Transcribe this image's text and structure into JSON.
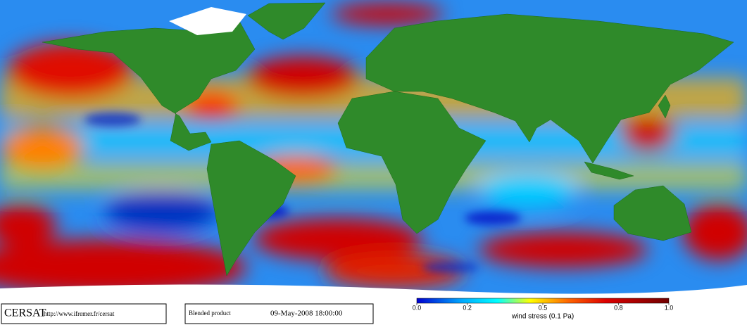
{
  "header": {
    "logo": "CERSAT",
    "url": "http://www.ifremer.fr/cersat",
    "product": "Blended product",
    "timestamp": "09-May-2008 18:00:00"
  },
  "colorbar": {
    "label": "wind stress (0.1 Pa)",
    "lim": [
      0,
      1
    ],
    "ticks": [
      {
        "value": 0,
        "label": "0.0"
      },
      0.2,
      0.5,
      0.8,
      {
        "value": 1,
        "label": "1.0"
      }
    ]
  }
}
